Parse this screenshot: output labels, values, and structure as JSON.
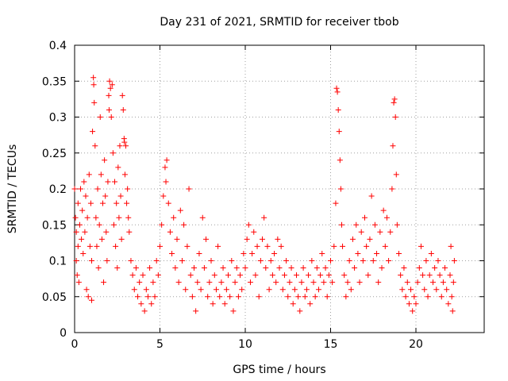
{
  "chart_data": {
    "type": "scatter",
    "title": "Day 231 of 2021, SRMTID for receiver tbob",
    "xlabel": "GPS time / hours",
    "ylabel": "SRMTID / TECUs",
    "xlim": [
      0,
      24
    ],
    "ylim": [
      0,
      0.4
    ],
    "x_ticks": [
      0,
      5,
      10,
      15,
      20
    ],
    "x_tick_labels": [
      "0",
      "5",
      "10",
      "15",
      "20"
    ],
    "y_ticks": [
      0,
      0.05,
      0.1,
      0.15,
      0.2,
      0.25,
      0.3,
      0.35,
      0.4
    ],
    "y_tick_labels": [
      "0",
      "0.05",
      "0.1",
      "0.15",
      "0.2",
      "0.25",
      "0.3",
      "0.35",
      "0.4"
    ],
    "grid": true,
    "marker": "+",
    "marker_color": "#ff0000",
    "series": [
      {
        "name": "SRMTID",
        "points": [
          [
            0.0,
            0.2
          ],
          [
            0.05,
            0.16
          ],
          [
            0.1,
            0.14
          ],
          [
            0.1,
            0.1
          ],
          [
            0.15,
            0.08
          ],
          [
            0.2,
            0.18
          ],
          [
            0.2,
            0.12
          ],
          [
            0.25,
            0.07
          ],
          [
            0.3,
            0.15
          ],
          [
            0.35,
            0.2
          ],
          [
            0.4,
            0.13
          ],
          [
            0.45,
            0.17
          ],
          [
            0.5,
            0.11
          ],
          [
            0.55,
            0.21
          ],
          [
            0.6,
            0.14
          ],
          [
            0.65,
            0.19
          ],
          [
            0.7,
            0.06
          ],
          [
            0.75,
            0.16
          ],
          [
            0.8,
            0.05
          ],
          [
            0.85,
            0.22
          ],
          [
            0.9,
            0.12
          ],
          [
            0.95,
            0.18
          ],
          [
            1.0,
            0.1
          ],
          [
            1.0,
            0.045
          ],
          [
            1.05,
            0.28
          ],
          [
            1.1,
            0.355
          ],
          [
            1.12,
            0.345
          ],
          [
            1.15,
            0.32
          ],
          [
            1.2,
            0.26
          ],
          [
            1.25,
            0.16
          ],
          [
            1.3,
            0.12
          ],
          [
            1.35,
            0.2
          ],
          [
            1.4,
            0.09
          ],
          [
            1.45,
            0.15
          ],
          [
            1.5,
            0.3
          ],
          [
            1.55,
            0.22
          ],
          [
            1.6,
            0.13
          ],
          [
            1.65,
            0.18
          ],
          [
            1.7,
            0.07
          ],
          [
            1.75,
            0.24
          ],
          [
            1.8,
            0.19
          ],
          [
            1.85,
            0.14
          ],
          [
            1.9,
            0.1
          ],
          [
            1.95,
            0.21
          ],
          [
            2.0,
            0.33
          ],
          [
            2.02,
            0.31
          ],
          [
            2.05,
            0.35
          ],
          [
            2.1,
            0.34
          ],
          [
            2.15,
            0.3
          ],
          [
            2.2,
            0.345
          ],
          [
            2.25,
            0.25
          ],
          [
            2.3,
            0.15
          ],
          [
            2.35,
            0.21
          ],
          [
            2.4,
            0.12
          ],
          [
            2.45,
            0.18
          ],
          [
            2.5,
            0.09
          ],
          [
            2.55,
            0.23
          ],
          [
            2.6,
            0.16
          ],
          [
            2.65,
            0.26
          ],
          [
            2.7,
            0.19
          ],
          [
            2.75,
            0.13
          ],
          [
            2.8,
            0.33
          ],
          [
            2.85,
            0.31
          ],
          [
            2.9,
            0.27
          ],
          [
            2.92,
            0.265
          ],
          [
            2.95,
            0.22
          ],
          [
            3.0,
            0.26
          ],
          [
            3.05,
            0.18
          ],
          [
            3.1,
            0.2
          ],
          [
            3.15,
            0.16
          ],
          [
            3.2,
            0.14
          ],
          [
            3.3,
            0.1
          ],
          [
            3.4,
            0.08
          ],
          [
            3.5,
            0.06
          ],
          [
            3.6,
            0.09
          ],
          [
            3.7,
            0.05
          ],
          [
            3.8,
            0.07
          ],
          [
            3.9,
            0.04
          ],
          [
            4.0,
            0.08
          ],
          [
            4.1,
            0.03
          ],
          [
            4.2,
            0.06
          ],
          [
            4.3,
            0.05
          ],
          [
            4.4,
            0.09
          ],
          [
            4.5,
            0.04
          ],
          [
            4.6,
            0.07
          ],
          [
            4.7,
            0.05
          ],
          [
            4.8,
            0.1
          ],
          [
            4.9,
            0.08
          ],
          [
            5.0,
            0.12
          ],
          [
            5.1,
            0.15
          ],
          [
            5.2,
            0.19
          ],
          [
            5.3,
            0.23
          ],
          [
            5.35,
            0.21
          ],
          [
            5.4,
            0.24
          ],
          [
            5.5,
            0.18
          ],
          [
            5.6,
            0.14
          ],
          [
            5.7,
            0.11
          ],
          [
            5.8,
            0.16
          ],
          [
            5.9,
            0.09
          ],
          [
            6.0,
            0.13
          ],
          [
            6.1,
            0.07
          ],
          [
            6.2,
            0.17
          ],
          [
            6.3,
            0.1
          ],
          [
            6.4,
            0.15
          ],
          [
            6.5,
            0.06
          ],
          [
            6.6,
            0.12
          ],
          [
            6.7,
            0.2
          ],
          [
            6.8,
            0.08
          ],
          [
            6.9,
            0.05
          ],
          [
            7.0,
            0.09
          ],
          [
            7.1,
            0.03
          ],
          [
            7.2,
            0.07
          ],
          [
            7.3,
            0.11
          ],
          [
            7.4,
            0.06
          ],
          [
            7.5,
            0.16
          ],
          [
            7.6,
            0.09
          ],
          [
            7.7,
            0.13
          ],
          [
            7.8,
            0.05
          ],
          [
            7.9,
            0.07
          ],
          [
            8.0,
            0.1
          ],
          [
            8.1,
            0.04
          ],
          [
            8.2,
            0.08
          ],
          [
            8.3,
            0.06
          ],
          [
            8.4,
            0.12
          ],
          [
            8.5,
            0.05
          ],
          [
            8.6,
            0.07
          ],
          [
            8.7,
            0.09
          ],
          [
            8.8,
            0.04
          ],
          [
            8.9,
            0.06
          ],
          [
            9.0,
            0.08
          ],
          [
            9.1,
            0.05
          ],
          [
            9.2,
            0.1
          ],
          [
            9.3,
            0.03
          ],
          [
            9.4,
            0.07
          ],
          [
            9.5,
            0.09
          ],
          [
            9.6,
            0.05
          ],
          [
            9.7,
            0.08
          ],
          [
            9.8,
            0.06
          ],
          [
            9.9,
            0.11
          ],
          [
            10.0,
            0.09
          ],
          [
            10.1,
            0.13
          ],
          [
            10.2,
            0.15
          ],
          [
            10.3,
            0.07
          ],
          [
            10.4,
            0.11
          ],
          [
            10.5,
            0.14
          ],
          [
            10.6,
            0.08
          ],
          [
            10.7,
            0.12
          ],
          [
            10.8,
            0.05
          ],
          [
            10.9,
            0.1
          ],
          [
            11.0,
            0.13
          ],
          [
            11.1,
            0.16
          ],
          [
            11.2,
            0.09
          ],
          [
            11.3,
            0.12
          ],
          [
            11.4,
            0.06
          ],
          [
            11.5,
            0.1
          ],
          [
            11.6,
            0.08
          ],
          [
            11.7,
            0.11
          ],
          [
            11.8,
            0.07
          ],
          [
            11.9,
            0.13
          ],
          [
            12.0,
            0.09
          ],
          [
            12.1,
            0.12
          ],
          [
            12.2,
            0.06
          ],
          [
            12.3,
            0.08
          ],
          [
            12.4,
            0.1
          ],
          [
            12.5,
            0.05
          ],
          [
            12.6,
            0.07
          ],
          [
            12.7,
            0.09
          ],
          [
            12.8,
            0.04
          ],
          [
            12.9,
            0.06
          ],
          [
            13.0,
            0.08
          ],
          [
            13.1,
            0.05
          ],
          [
            13.2,
            0.03
          ],
          [
            13.3,
            0.07
          ],
          [
            13.4,
            0.09
          ],
          [
            13.5,
            0.05
          ],
          [
            13.6,
            0.06
          ],
          [
            13.7,
            0.08
          ],
          [
            13.8,
            0.04
          ],
          [
            13.9,
            0.1
          ],
          [
            14.0,
            0.07
          ],
          [
            14.1,
            0.05
          ],
          [
            14.2,
            0.09
          ],
          [
            14.3,
            0.06
          ],
          [
            14.4,
            0.08
          ],
          [
            14.5,
            0.11
          ],
          [
            14.6,
            0.07
          ],
          [
            14.7,
            0.09
          ],
          [
            14.8,
            0.05
          ],
          [
            14.9,
            0.08
          ],
          [
            15.0,
            0.1
          ],
          [
            15.1,
            0.07
          ],
          [
            15.2,
            0.12
          ],
          [
            15.3,
            0.18
          ],
          [
            15.35,
            0.34
          ],
          [
            15.4,
            0.335
          ],
          [
            15.45,
            0.31
          ],
          [
            15.5,
            0.28
          ],
          [
            15.55,
            0.24
          ],
          [
            15.6,
            0.2
          ],
          [
            15.65,
            0.15
          ],
          [
            15.7,
            0.12
          ],
          [
            15.8,
            0.08
          ],
          [
            15.9,
            0.05
          ],
          [
            16.0,
            0.07
          ],
          [
            16.1,
            0.1
          ],
          [
            16.2,
            0.06
          ],
          [
            16.3,
            0.13
          ],
          [
            16.4,
            0.09
          ],
          [
            16.5,
            0.15
          ],
          [
            16.6,
            0.11
          ],
          [
            16.7,
            0.07
          ],
          [
            16.8,
            0.14
          ],
          [
            16.9,
            0.1
          ],
          [
            17.0,
            0.16
          ],
          [
            17.1,
            0.12
          ],
          [
            17.2,
            0.08
          ],
          [
            17.3,
            0.13
          ],
          [
            17.4,
            0.19
          ],
          [
            17.5,
            0.1
          ],
          [
            17.6,
            0.15
          ],
          [
            17.7,
            0.11
          ],
          [
            17.8,
            0.07
          ],
          [
            17.9,
            0.14
          ],
          [
            18.0,
            0.09
          ],
          [
            18.1,
            0.17
          ],
          [
            18.2,
            0.12
          ],
          [
            18.3,
            0.16
          ],
          [
            18.4,
            0.1
          ],
          [
            18.5,
            0.14
          ],
          [
            18.6,
            0.2
          ],
          [
            18.65,
            0.26
          ],
          [
            18.7,
            0.32
          ],
          [
            18.75,
            0.325
          ],
          [
            18.8,
            0.3
          ],
          [
            18.85,
            0.22
          ],
          [
            18.9,
            0.15
          ],
          [
            19.0,
            0.11
          ],
          [
            19.1,
            0.08
          ],
          [
            19.2,
            0.06
          ],
          [
            19.3,
            0.09
          ],
          [
            19.4,
            0.05
          ],
          [
            19.5,
            0.07
          ],
          [
            19.6,
            0.04
          ],
          [
            19.7,
            0.06
          ],
          [
            19.8,
            0.03
          ],
          [
            19.9,
            0.05
          ],
          [
            20.0,
            0.04
          ],
          [
            20.1,
            0.07
          ],
          [
            20.2,
            0.09
          ],
          [
            20.3,
            0.12
          ],
          [
            20.4,
            0.08
          ],
          [
            20.5,
            0.06
          ],
          [
            20.6,
            0.1
          ],
          [
            20.7,
            0.05
          ],
          [
            20.8,
            0.08
          ],
          [
            20.9,
            0.11
          ],
          [
            21.0,
            0.07
          ],
          [
            21.1,
            0.09
          ],
          [
            21.2,
            0.06
          ],
          [
            21.3,
            0.1
          ],
          [
            21.4,
            0.08
          ],
          [
            21.5,
            0.05
          ],
          [
            21.6,
            0.07
          ],
          [
            21.7,
            0.09
          ],
          [
            21.8,
            0.06
          ],
          [
            21.9,
            0.04
          ],
          [
            22.0,
            0.08
          ],
          [
            22.05,
            0.12
          ],
          [
            22.1,
            0.05
          ],
          [
            22.15,
            0.03
          ],
          [
            22.2,
            0.07
          ],
          [
            22.25,
            0.1
          ]
        ]
      }
    ]
  }
}
